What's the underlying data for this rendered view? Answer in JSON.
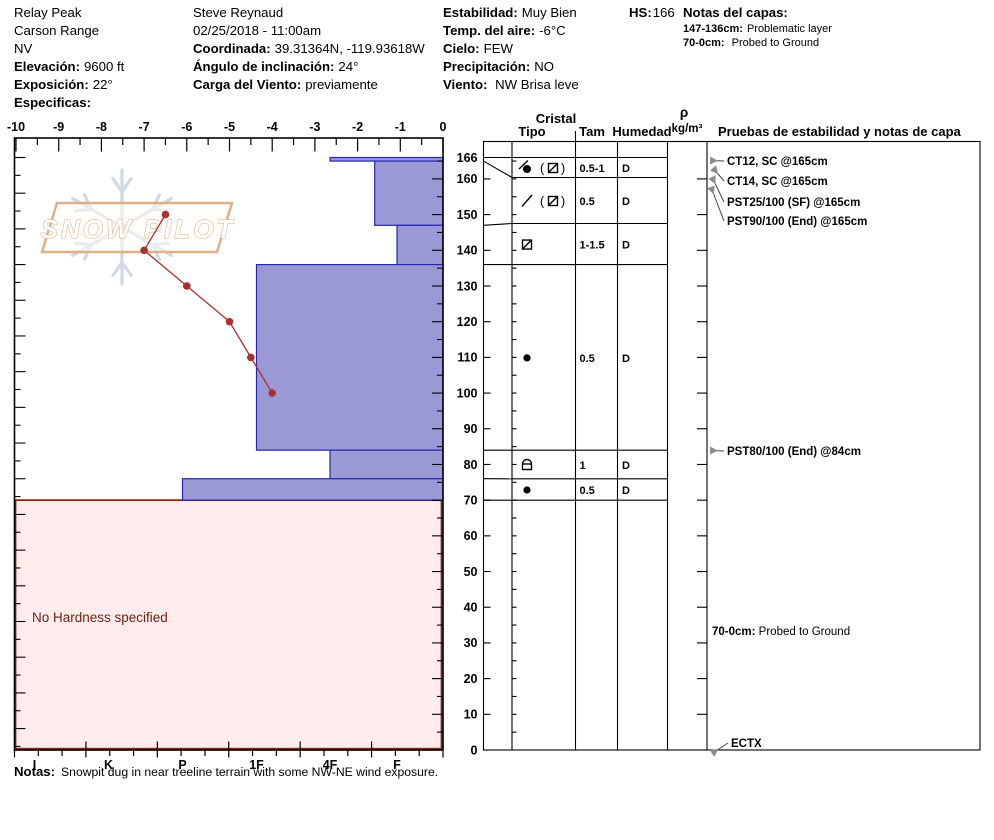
{
  "header": {
    "site": {
      "name": "Relay Peak",
      "range": "Carson Range",
      "state": "NV",
      "elevation_label": "Elevación:",
      "elevation": "9600 ft",
      "aspect_label": "Exposición:",
      "aspect": "22°",
      "specifics_label": "Especificas:"
    },
    "observer": {
      "name": "Steve Reynaud",
      "datetime": "02/25/2018 - 11:00am",
      "coordinates_label": "Coordinada:",
      "coordinates": "39.31364N, -119.93618W",
      "slope_angle_label": "Ángulo de inclinación:",
      "slope_angle": "24°",
      "wind_loading_label": "Carga del Viento:",
      "wind_loading": "previamente"
    },
    "conditions": {
      "stability_label": "Estabilidad:",
      "stability": "Muy Bien",
      "air_temp_label": "Temp. del aire:",
      "air_temp": "-6°C",
      "sky_label": "Cielo:",
      "sky": "FEW",
      "precipitation_label": "Precipitación:",
      "precipitation": "NO",
      "wind_label": "Viento:",
      "wind": "NW Brisa leve"
    },
    "hs_label": "HS:",
    "hs_value": "166",
    "layer_notes_label": "Notas del capas:",
    "layer_notes": [
      {
        "range": "147-136cm:",
        "text": "Problematic layer"
      },
      {
        "range": "70-0cm:",
        "text": "Probed to Ground"
      }
    ]
  },
  "watermark": {
    "text": "SNOW PILOT"
  },
  "chart_data": {
    "type": "snow-profile",
    "temp_axis": {
      "min": -10,
      "max": 0,
      "tick_step": 1,
      "minor_step": 0.5
    },
    "hardness_axis": {
      "categories": [
        "I",
        "K",
        "P",
        "1F",
        "4F",
        "F"
      ]
    },
    "depth_axis": {
      "surface_cm": 166,
      "labels": [
        166,
        160,
        150,
        140,
        130,
        120,
        110,
        100,
        90,
        80,
        70,
        60,
        50,
        40,
        30,
        20,
        10,
        0
      ]
    },
    "temperature_profile": [
      {
        "depth_cm": 150,
        "temp_c": -6.5
      },
      {
        "depth_cm": 140,
        "temp_c": -7
      },
      {
        "depth_cm": 130,
        "temp_c": -6
      },
      {
        "depth_cm": 120,
        "temp_c": -5
      },
      {
        "depth_cm": 110,
        "temp_c": -4.5
      },
      {
        "depth_cm": 100,
        "temp_c": -4
      }
    ],
    "layers": [
      {
        "top_cm": 166,
        "bottom_cm": 165,
        "hardness": "4F"
      },
      {
        "top_cm": 165,
        "bottom_cm": 147,
        "hardness": "F+"
      },
      {
        "top_cm": 147,
        "bottom_cm": 136,
        "hardness": "F"
      },
      {
        "top_cm": 136,
        "bottom_cm": 84,
        "hardness": "1F"
      },
      {
        "top_cm": 84,
        "bottom_cm": 76,
        "hardness": "4F"
      },
      {
        "top_cm": 76,
        "bottom_cm": 70,
        "hardness": "P"
      }
    ],
    "no_hardness_region": {
      "top_cm": 70,
      "bottom_cm": 0,
      "label": "No Hardness specified"
    },
    "grain_table": {
      "header_group": "Cristal",
      "col_tipo": "Tipo",
      "col_tam": "Tam",
      "col_humedad": "Humedad",
      "col_density": "ρ",
      "col_density_units": "kg/m³",
      "col_tests": "Pruebas de estabilidad y notas de capa",
      "rows": [
        {
          "top_cm": 166,
          "bottom_cm": 165,
          "primary_symbol": "df",
          "secondary_symbol": "square-slash",
          "size_mm": "0.5-1",
          "moisture": "D"
        },
        {
          "top_cm": 165,
          "bottom_cm": 147,
          "primary_symbol": "slash",
          "secondary_symbol": "square-slash",
          "size_mm": "0.5",
          "moisture": "D"
        },
        {
          "top_cm": 147,
          "bottom_cm": 136,
          "primary_symbol": "square-slash",
          "secondary_symbol": null,
          "size_mm": "1-1.5",
          "moisture": "D"
        },
        {
          "top_cm": 136,
          "bottom_cm": 84,
          "primary_symbol": "dot",
          "secondary_symbol": null,
          "size_mm": "0.5",
          "moisture": "D"
        },
        {
          "top_cm": 84,
          "bottom_cm": 76,
          "primary_symbol": "dome",
          "secondary_symbol": null,
          "size_mm": "1",
          "moisture": "D"
        },
        {
          "top_cm": 76,
          "bottom_cm": 70,
          "primary_symbol": "dot",
          "secondary_symbol": null,
          "size_mm": "0.5",
          "moisture": "D"
        }
      ]
    },
    "stability_tests": [
      {
        "text": "CT12, SC @165cm",
        "at_cm": 165
      },
      {
        "text": "CT14, SC @165cm",
        "at_cm": 165
      },
      {
        "text": "PST25/100 (SF) @165cm",
        "at_cm": 165
      },
      {
        "text": "PST90/100 (End) @165cm",
        "at_cm": 165
      },
      {
        "text": "PST80/100 (End) @84cm",
        "at_cm": 84
      },
      {
        "text": "ECTX",
        "at_cm": 0
      }
    ],
    "column_note": {
      "range": "70-0cm:",
      "text": "Probed to Ground"
    },
    "colors": {
      "bar_fill": "#9a99d6",
      "bar_stroke": "#2626ae",
      "temp_line": "#a93030",
      "no_hardness_fill": "#fdeceb",
      "no_hardness_stroke": "#8a2318",
      "arrow_grey": "#8c8c8c",
      "watermark_flake": "#ccd7e3",
      "watermark_tan": "#d9a87c"
    }
  },
  "footer": {
    "notes_label": "Notas:",
    "notes": "Snowpit dug in near treeline terrain with some NW-NE wind exposure."
  }
}
